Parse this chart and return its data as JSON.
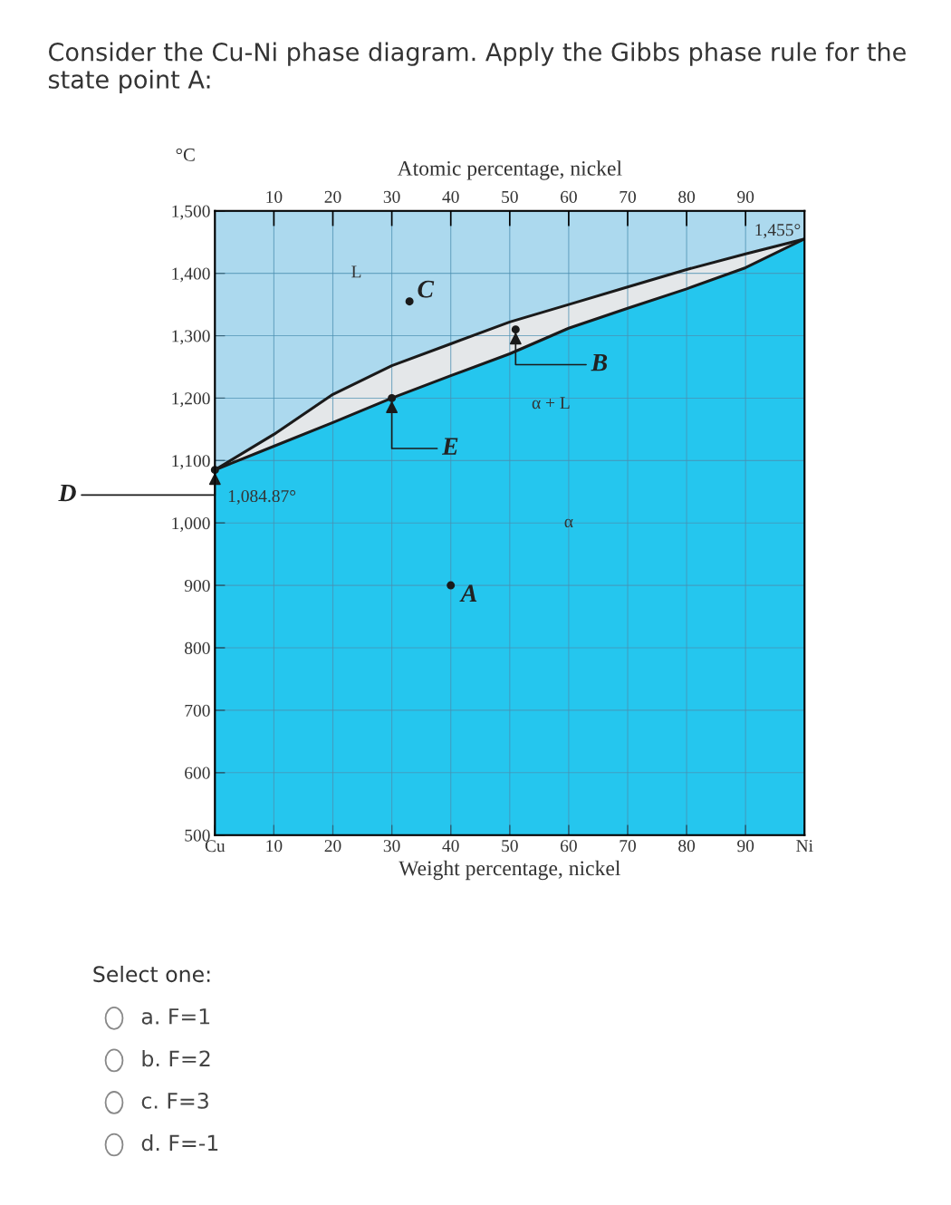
{
  "chart_data": {
    "type": "area",
    "title": "Consider the Cu-Ni phase diagram. Apply the Gibbs phase rule for the state point A:",
    "xlabel": "Weight percentage, nickel",
    "x2label": "Atomic percentage, nickel",
    "ylabel": "°C",
    "x": [
      0,
      10,
      20,
      30,
      40,
      50,
      60,
      70,
      80,
      90,
      100
    ],
    "series": [
      {
        "color": "#25c6ee",
        "values": [
          1085,
          1123,
          1161,
          1200,
          1236,
          1271,
          1312,
          1344,
          1375,
          1409,
          1455
        ]
      },
      {
        "color": "#e4e7e9",
        "values": [
          1085,
          1142,
          1206,
          1252,
          1287,
          1322,
          1350,
          1378,
          1406,
          1431,
          1455
        ]
      },
      {
        "type": "scatter",
        "color": "#1a1a1a",
        "marker": "circle",
        "x": [
          33,
          40,
          51,
          30,
          0
        ],
        "values": [
          1355,
          900,
          1310,
          1200,
          1085
        ]
      }
    ],
    "xlim": [
      0,
      100
    ],
    "xticks": [
      {
        "value": 0,
        "label": "Cu"
      },
      10,
      20,
      30,
      40,
      50,
      60,
      70,
      80,
      90,
      {
        "value": 100,
        "label": "Ni"
      }
    ],
    "x2lim": [
      0,
      100
    ],
    "x2ticks": [
      10,
      20,
      30,
      40,
      50,
      60,
      70,
      80,
      90
    ],
    "ylim": [
      500,
      1500
    ],
    "yticks": [
      {
        "value": 500,
        "label": "500"
      },
      600,
      700,
      800,
      900,
      {
        "value": 1000,
        "label": "1,000"
      },
      {
        "value": 1100,
        "label": "1,100"
      },
      {
        "value": 1200,
        "label": "1,200"
      },
      {
        "value": 1300,
        "label": "1,300"
      },
      {
        "value": 1400,
        "label": "1,400"
      },
      {
        "value": 1500,
        "label": "1,500"
      }
    ],
    "grid": true,
    "bands": [
      {
        "axis": "y",
        "from": 1085,
        "to": 1500,
        "color": "#acd9ee"
      }
    ],
    "annotations": [
      {
        "text": "C",
        "x": 33,
        "y": 1355
      },
      {
        "text": "A",
        "x": 40,
        "y": 900
      },
      {
        "text": "B",
        "x": 51,
        "y": 1310
      },
      {
        "text": "E",
        "x": 30,
        "y": 1200
      },
      {
        "text": "D",
        "x": 0,
        "y": 1085
      },
      {
        "text": "1,084.87°",
        "x": 0,
        "y": 1085
      },
      {
        "text": "1,455°",
        "x": 100,
        "y": 1455
      },
      "L",
      "α + L",
      "α",
      "Select one:",
      "a. F=1",
      "b. F=2",
      "c. F=3",
      "d. F=-1"
    ]
  }
}
